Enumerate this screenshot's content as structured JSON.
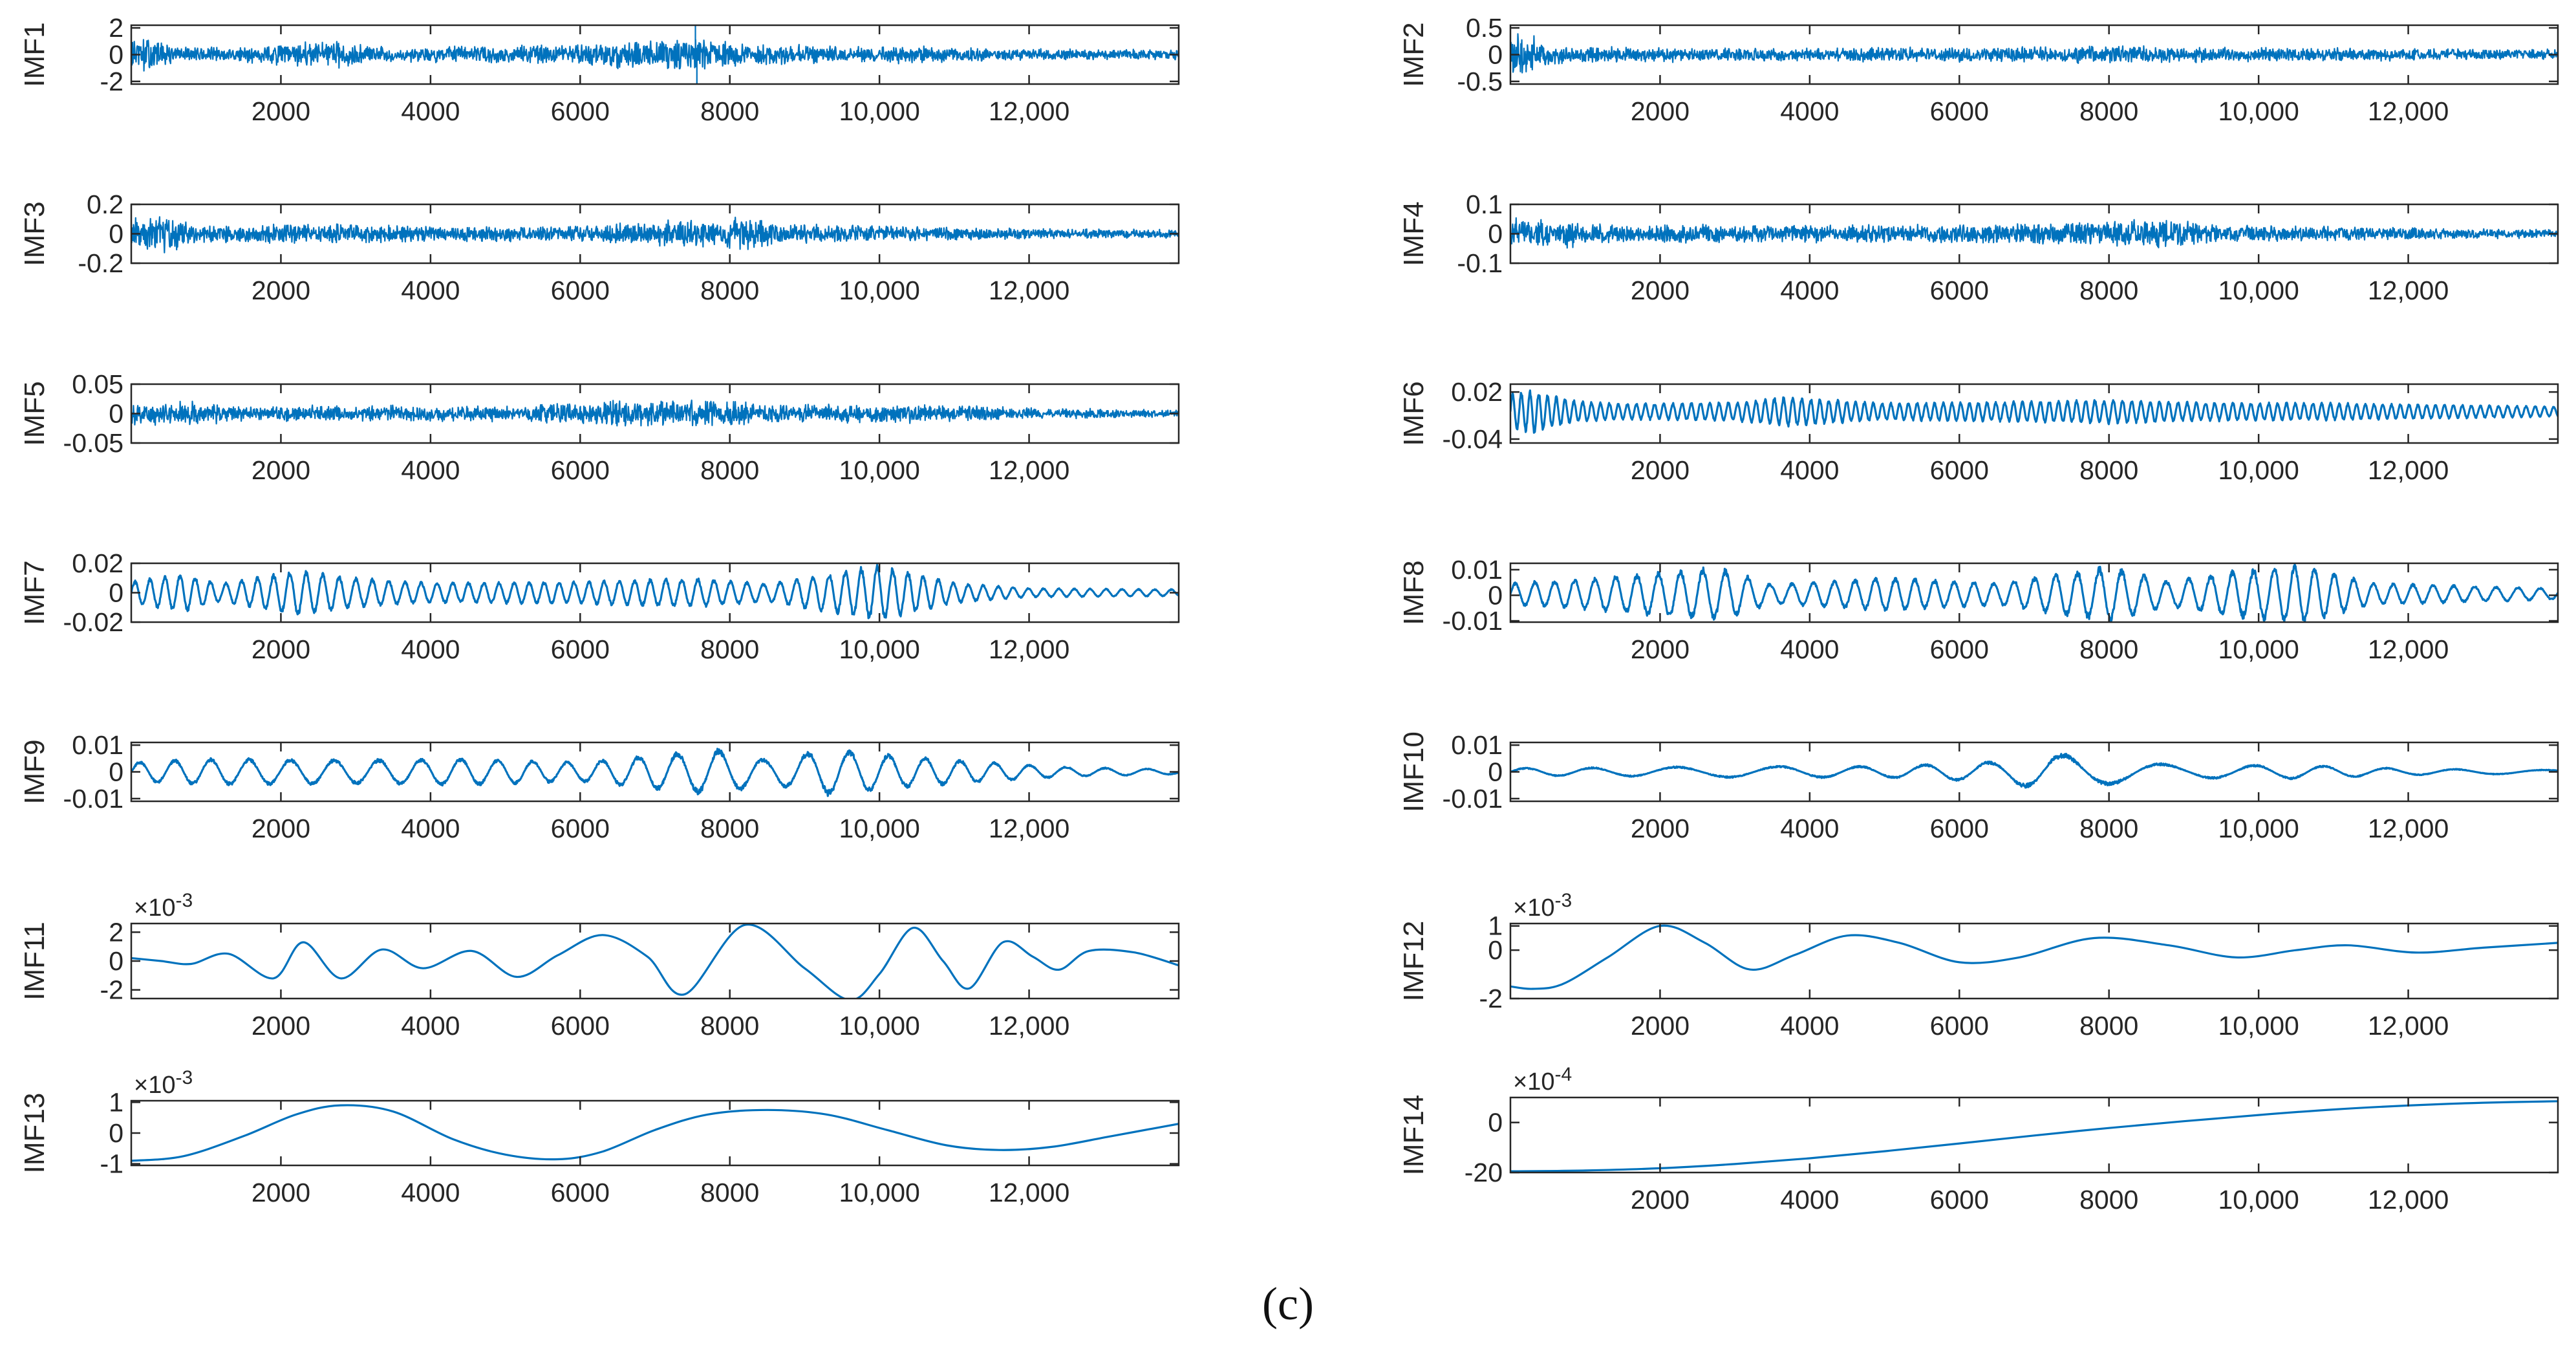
{
  "figure": {
    "caption": "(c)"
  },
  "chart_data": [
    {
      "name": "IMF1",
      "type": "line",
      "ylabel": "IMF1",
      "xlim": [
        0,
        14000
      ],
      "ylim": [
        -2.2,
        2.2
      ],
      "xticks": [
        2000,
        4000,
        6000,
        8000,
        10000,
        12000
      ],
      "xtick_labels": [
        "2000",
        "4000",
        "6000",
        "8000",
        "10,000",
        "12,000"
      ],
      "yticks": [
        -2,
        0,
        2
      ],
      "ytick_labels": [
        "-2",
        "0",
        "2"
      ],
      "exponent": "",
      "signal": "noise",
      "amplitude": 1.0,
      "series_color": "#0072BD",
      "envelope": [
        [
          0,
          1.4
        ],
        [
          300,
          1.3
        ],
        [
          600,
          0.7
        ],
        [
          1500,
          0.6
        ],
        [
          2300,
          1.0
        ],
        [
          2800,
          1.1
        ],
        [
          3500,
          0.6
        ],
        [
          4500,
          0.7
        ],
        [
          5500,
          0.8
        ],
        [
          6500,
          1.1
        ],
        [
          7500,
          1.3
        ],
        [
          8200,
          0.9
        ],
        [
          8800,
          0.9
        ],
        [
          9500,
          0.6
        ],
        [
          10400,
          0.7
        ],
        [
          11000,
          0.6
        ],
        [
          12000,
          0.45
        ],
        [
          14000,
          0.4
        ]
      ],
      "spikes": [
        [
          7540,
          2.2
        ],
        [
          7560,
          -2.2
        ]
      ]
    },
    {
      "name": "IMF2",
      "type": "line",
      "ylabel": "IMF2",
      "xlim": [
        0,
        14000
      ],
      "ylim": [
        -0.55,
        0.55
      ],
      "xticks": [
        2000,
        4000,
        6000,
        8000,
        10000,
        12000
      ],
      "xtick_labels": [
        "2000",
        "4000",
        "6000",
        "8000",
        "10,000",
        "12,000"
      ],
      "yticks": [
        -0.5,
        0,
        0.5
      ],
      "ytick_labels": [
        "-0.5",
        "0",
        "0.5"
      ],
      "exponent": "",
      "signal": "noise",
      "amplitude": 0.12,
      "series_color": "#0072BD",
      "envelope": [
        [
          0,
          4.0
        ],
        [
          250,
          3.5
        ],
        [
          500,
          1.8
        ],
        [
          1000,
          1.3
        ],
        [
          2500,
          1.2
        ],
        [
          3500,
          1.2
        ],
        [
          5000,
          1.2
        ],
        [
          7000,
          1.3
        ],
        [
          8000,
          1.6
        ],
        [
          9000,
          1.3
        ],
        [
          11000,
          1.1
        ],
        [
          14000,
          0.9
        ]
      ],
      "spikes": []
    },
    {
      "name": "IMF3",
      "type": "line",
      "ylabel": "IMF3",
      "xlim": [
        0,
        14000
      ],
      "ylim": [
        -0.2,
        0.2
      ],
      "xticks": [
        2000,
        4000,
        6000,
        8000,
        10000,
        12000
      ],
      "xtick_labels": [
        "2000",
        "4000",
        "6000",
        "8000",
        "10,000",
        "12,000"
      ],
      "yticks": [
        -0.2,
        0,
        0.2
      ],
      "ytick_labels": [
        "-0.2",
        "0",
        "0.2"
      ],
      "exponent": "",
      "signal": "noise",
      "amplitude": 0.05,
      "series_color": "#0072BD",
      "envelope": [
        [
          0,
          2.5
        ],
        [
          500,
          2.8
        ],
        [
          1000,
          1.2
        ],
        [
          2500,
          1.6
        ],
        [
          4000,
          1.1
        ],
        [
          6000,
          1.2
        ],
        [
          7200,
          1.9
        ],
        [
          8200,
          2.5
        ],
        [
          8700,
          1.5
        ],
        [
          10000,
          1.2
        ],
        [
          12000,
          0.8
        ],
        [
          14000,
          0.6
        ]
      ],
      "spikes": []
    },
    {
      "name": "IMF4",
      "type": "line",
      "ylabel": "IMF4",
      "xlim": [
        0,
        14000
      ],
      "ylim": [
        -0.1,
        0.1
      ],
      "xticks": [
        2000,
        4000,
        6000,
        8000,
        10000,
        12000
      ],
      "xtick_labels": [
        "2000",
        "4000",
        "6000",
        "8000",
        "10,000",
        "12,000"
      ],
      "yticks": [
        -0.1,
        0,
        0.1
      ],
      "ytick_labels": [
        "-0.1",
        "0",
        "0.1"
      ],
      "exponent": "",
      "signal": "noise",
      "amplitude": 0.025,
      "series_color": "#0072BD",
      "envelope": [
        [
          0,
          2.2
        ],
        [
          500,
          2.4
        ],
        [
          1200,
          1.4
        ],
        [
          3000,
          1.3
        ],
        [
          5000,
          1.3
        ],
        [
          7000,
          1.5
        ],
        [
          8800,
          2.4
        ],
        [
          9500,
          1.3
        ],
        [
          11000,
          1.1
        ],
        [
          12500,
          0.8
        ],
        [
          14000,
          0.6
        ]
      ],
      "spikes": []
    },
    {
      "name": "IMF5",
      "type": "line",
      "ylabel": "IMF5",
      "xlim": [
        0,
        14000
      ],
      "ylim": [
        -0.05,
        0.05
      ],
      "xticks": [
        2000,
        4000,
        6000,
        8000,
        10000,
        12000
      ],
      "xtick_labels": [
        "2000",
        "4000",
        "6000",
        "8000",
        "10,000",
        "12,000"
      ],
      "yticks": [
        -0.05,
        0,
        0.05
      ],
      "ytick_labels": [
        "-0.05",
        "0",
        "0.05"
      ],
      "exponent": "",
      "signal": "noise",
      "amplitude": 0.012,
      "series_color": "#0072BD",
      "envelope": [
        [
          0,
          1.6
        ],
        [
          700,
          2.0
        ],
        [
          1500,
          1.2
        ],
        [
          3000,
          1.3
        ],
        [
          5000,
          1.2
        ],
        [
          6500,
          2.0
        ],
        [
          7600,
          2.2
        ],
        [
          8500,
          1.5
        ],
        [
          10500,
          1.4
        ],
        [
          12000,
          0.9
        ],
        [
          14000,
          0.6
        ]
      ],
      "spikes": []
    },
    {
      "name": "IMF6",
      "type": "line",
      "ylabel": "IMF6",
      "xlim": [
        0,
        14000
      ],
      "ylim": [
        -0.045,
        0.03
      ],
      "xticks": [
        2000,
        4000,
        6000,
        8000,
        10000,
        12000
      ],
      "xtick_labels": [
        "2000",
        "4000",
        "6000",
        "8000",
        "10,000",
        "12,000"
      ],
      "yticks": [
        -0.04,
        0.02
      ],
      "ytick_labels": [
        "-0.04",
        "0.02"
      ],
      "exponent": "",
      "signal": "osc",
      "period": 120,
      "amplitude": 0.01,
      "center": -0.005,
      "series_color": "#0072BD",
      "envelope": [
        [
          0,
          2.0
        ],
        [
          300,
          2.5
        ],
        [
          800,
          1.3
        ],
        [
          1500,
          0.9
        ],
        [
          3000,
          1.1
        ],
        [
          3700,
          1.7
        ],
        [
          5000,
          1.0
        ],
        [
          7000,
          1.2
        ],
        [
          8000,
          1.4
        ],
        [
          9000,
          1.1
        ],
        [
          11000,
          1.0
        ],
        [
          14000,
          0.6
        ]
      ],
      "spikes": []
    },
    {
      "name": "IMF7",
      "type": "line",
      "ylabel": "IMF7",
      "xlim": [
        0,
        14000
      ],
      "ylim": [
        -0.02,
        0.02
      ],
      "xticks": [
        2000,
        4000,
        6000,
        8000,
        10000,
        12000
      ],
      "xtick_labels": [
        "2000",
        "4000",
        "6000",
        "8000",
        "10,000",
        "12,000"
      ],
      "yticks": [
        -0.02,
        0,
        0.02
      ],
      "ytick_labels": [
        "-0.02",
        "0",
        "0.02"
      ],
      "exponent": "",
      "signal": "osc",
      "period": 210,
      "amplitude": 0.007,
      "center": 0,
      "series_color": "#0072BD",
      "envelope": [
        [
          0,
          1.0
        ],
        [
          700,
          1.7
        ],
        [
          1200,
          0.8
        ],
        [
          2200,
          2.0
        ],
        [
          3000,
          1.3
        ],
        [
          4000,
          0.9
        ],
        [
          6000,
          1.0
        ],
        [
          7500,
          1.3
        ],
        [
          8500,
          0.8
        ],
        [
          10000,
          2.5
        ],
        [
          11000,
          0.9
        ],
        [
          12000,
          0.4
        ],
        [
          14000,
          0.3
        ]
      ],
      "spikes": []
    },
    {
      "name": "IMF8",
      "type": "line",
      "ylabel": "IMF8",
      "xlim": [
        0,
        14000
      ],
      "ylim": [
        -0.0105,
        0.0125
      ],
      "xticks": [
        2000,
        4000,
        6000,
        8000,
        10000,
        12000
      ],
      "xtick_labels": [
        "2000",
        "4000",
        "6000",
        "8000",
        "10,000",
        "12,000"
      ],
      "yticks": [
        -0.01,
        0,
        0.01
      ],
      "ytick_labels": [
        "-0.01",
        "0",
        "0.01"
      ],
      "exponent": "",
      "signal": "osc",
      "period": 280,
      "amplitude": 0.005,
      "center": 0.0005,
      "series_color": "#0072BD",
      "envelope": [
        [
          0,
          0.8
        ],
        [
          1000,
          1.1
        ],
        [
          2000,
          1.6
        ],
        [
          2800,
          1.9
        ],
        [
          3500,
          0.7
        ],
        [
          5000,
          1.2
        ],
        [
          6500,
          0.8
        ],
        [
          8000,
          2.0
        ],
        [
          8800,
          0.9
        ],
        [
          9600,
          1.6
        ],
        [
          10600,
          2.1
        ],
        [
          11500,
          0.8
        ],
        [
          14000,
          0.4
        ]
      ],
      "spikes": []
    },
    {
      "name": "IMF9",
      "type": "line",
      "ylabel": "IMF9",
      "xlim": [
        0,
        14000
      ],
      "ylim": [
        -0.011,
        0.011
      ],
      "xticks": [
        2000,
        4000,
        6000,
        8000,
        10000,
        12000
      ],
      "xtick_labels": [
        "2000",
        "4000",
        "6000",
        "8000",
        "10,000",
        "12,000"
      ],
      "yticks": [
        -0.01,
        0,
        0.01
      ],
      "ytick_labels": [
        "-0.01",
        "0",
        "0.01"
      ],
      "exponent": "",
      "signal": "osc",
      "period": 520,
      "amplitude": 0.0042,
      "center": 0,
      "series_color": "#0072BD",
      "envelope": [
        [
          0,
          0.8
        ],
        [
          1000,
          1.1
        ],
        [
          3000,
          1.0
        ],
        [
          4500,
          1.1
        ],
        [
          6000,
          0.8
        ],
        [
          7800,
          1.9
        ],
        [
          8500,
          1.0
        ],
        [
          9300,
          1.9
        ],
        [
          10500,
          1.2
        ],
        [
          11500,
          0.8
        ],
        [
          12500,
          0.4
        ],
        [
          14000,
          0.2
        ]
      ],
      "spikes": []
    },
    {
      "name": "IMF10",
      "type": "line",
      "ylabel": "IMF10",
      "xlim": [
        0,
        14000
      ],
      "ylim": [
        -0.011,
        0.011
      ],
      "xticks": [
        2000,
        4000,
        6000,
        8000,
        10000,
        12000
      ],
      "xtick_labels": [
        "2000",
        "4000",
        "6000",
        "8000",
        "10,000",
        "12,000"
      ],
      "yticks": [
        -0.01,
        0,
        0.01
      ],
      "ytick_labels": [
        "-0.01",
        "0",
        "0.01"
      ],
      "exponent": "",
      "signal": "osc",
      "period": 1050,
      "amplitude": 0.0022,
      "center": 0,
      "series_color": "#0072BD",
      "envelope": [
        [
          0,
          0.6
        ],
        [
          1500,
          0.7
        ],
        [
          3000,
          0.9
        ],
        [
          5000,
          0.9
        ],
        [
          6500,
          1.6
        ],
        [
          7200,
          3.0
        ],
        [
          8000,
          2.0
        ],
        [
          9000,
          1.0
        ],
        [
          10500,
          1.1
        ],
        [
          12000,
          0.5
        ],
        [
          14000,
          0.3
        ]
      ],
      "spikes": []
    },
    {
      "name": "IMF11",
      "type": "line",
      "ylabel": "IMF11",
      "xlim": [
        0,
        14000
      ],
      "ylim": [
        -2.6,
        2.6
      ],
      "xticks": [
        2000,
        4000,
        6000,
        8000,
        10000,
        12000
      ],
      "xtick_labels": [
        "2000",
        "4000",
        "6000",
        "8000",
        "10,000",
        "12,000"
      ],
      "yticks": [
        -2,
        0,
        2
      ],
      "ytick_labels": [
        "-2",
        "0",
        "2"
      ],
      "exponent": "-3",
      "series_color": "#0072BD",
      "signal": "points",
      "x": [
        0,
        400,
        800,
        1300,
        1900,
        2300,
        2800,
        3350,
        3900,
        4550,
        5150,
        5700,
        6300,
        6900,
        7400,
        8200,
        9000,
        9600,
        10000,
        10450,
        10850,
        11200,
        11650,
        12050,
        12400,
        12800,
        13400,
        14000
      ],
      "y": [
        0.2,
        0.0,
        -0.2,
        0.5,
        -1.2,
        1.3,
        -1.2,
        0.8,
        -0.5,
        0.7,
        -1.1,
        0.4,
        1.8,
        0.3,
        -2.3,
        2.5,
        -0.5,
        -2.7,
        -0.9,
        2.3,
        0.0,
        -1.9,
        1.3,
        0.3,
        -0.6,
        0.7,
        0.6,
        -0.3
      ]
    },
    {
      "name": "IMF12",
      "type": "line",
      "ylabel": "IMF12",
      "xlim": [
        0,
        14000
      ],
      "ylim": [
        -2,
        1.1
      ],
      "xticks": [
        2000,
        4000,
        6000,
        8000,
        10000,
        12000
      ],
      "xtick_labels": [
        "2000",
        "4000",
        "6000",
        "8000",
        "10,000",
        "12,000"
      ],
      "yticks": [
        -2,
        0,
        1
      ],
      "ytick_labels": [
        "-2",
        "0",
        "1"
      ],
      "exponent": "-3",
      "series_color": "#0072BD",
      "signal": "points",
      "x": [
        0,
        300,
        700,
        1300,
        2000,
        2600,
        3200,
        3800,
        4500,
        5200,
        6000,
        6800,
        7800,
        8800,
        9700,
        10500,
        11200,
        12100,
        13000,
        14000
      ],
      "y": [
        -1.5,
        -1.6,
        -1.4,
        -0.3,
        1.0,
        0.3,
        -0.8,
        -0.2,
        0.6,
        0.3,
        -0.5,
        -0.3,
        0.5,
        0.2,
        -0.3,
        0.0,
        0.2,
        -0.1,
        0.1,
        0.3
      ]
    },
    {
      "name": "IMF13",
      "type": "line",
      "ylabel": "IMF13",
      "xlim": [
        0,
        14000
      ],
      "ylim": [
        -1.05,
        1.05
      ],
      "xticks": [
        2000,
        4000,
        6000,
        8000,
        10000,
        12000
      ],
      "xtick_labels": [
        "2000",
        "4000",
        "6000",
        "8000",
        "10,000",
        "12,000"
      ],
      "yticks": [
        -1,
        0,
        1
      ],
      "ytick_labels": [
        "-1",
        "0",
        "1"
      ],
      "exponent": "-3",
      "series_color": "#0072BD",
      "signal": "points",
      "x": [
        0,
        700,
        1500,
        2200,
        2800,
        3500,
        4300,
        5000,
        5700,
        6300,
        7000,
        7700,
        8500,
        9300,
        10100,
        10900,
        11600,
        12300,
        13100,
        14000
      ],
      "y": [
        -0.9,
        -0.75,
        -0.1,
        0.6,
        0.9,
        0.7,
        -0.2,
        -0.7,
        -0.85,
        -0.6,
        0.1,
        0.6,
        0.75,
        0.6,
        0.1,
        -0.4,
        -0.55,
        -0.45,
        -0.1,
        0.3
      ]
    },
    {
      "name": "IMF14",
      "type": "line",
      "ylabel": "IMF14",
      "xlim": [
        0,
        14000
      ],
      "ylim": [
        -20,
        10
      ],
      "xticks": [
        2000,
        4000,
        6000,
        8000,
        10000,
        12000
      ],
      "xtick_labels": [
        "2000",
        "4000",
        "6000",
        "8000",
        "10,000",
        "12,000"
      ],
      "yticks": [
        -20,
        0
      ],
      "ytick_labels": [
        "-20",
        "0"
      ],
      "exponent": "-4",
      "series_color": "#0072BD",
      "signal": "points",
      "x": [
        0,
        1000,
        2000,
        3000,
        4000,
        5000,
        6000,
        7000,
        8000,
        9000,
        10000,
        11000,
        12000,
        13000,
        14000
      ],
      "y": [
        -19.5,
        -19.2,
        -18.3,
        -16.6,
        -14.3,
        -11.5,
        -8.4,
        -5.2,
        -2.2,
        0.5,
        3.0,
        5.2,
        6.8,
        7.9,
        8.5
      ]
    }
  ]
}
